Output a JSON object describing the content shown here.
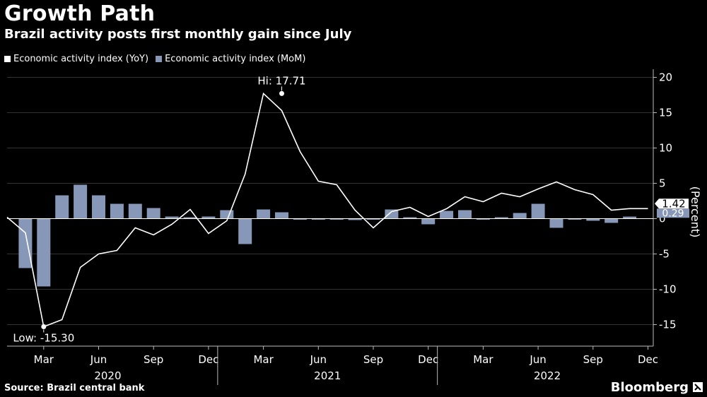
{
  "header": {
    "title": "Growth Path",
    "subtitle": "Brazil activity posts first monthly gain since July"
  },
  "legend": {
    "yoy_label": "Economic activity index (YoY)",
    "mom_label": "Economic activity index (MoM)"
  },
  "colors": {
    "yoy": "#ffffff",
    "mom": "#8797b8",
    "background": "#000000"
  },
  "footer": {
    "source": "Source: Brazil central bank",
    "brand": "Bloomberg",
    "brand_icon": "terminal-cursor-icon"
  },
  "chart_data": {
    "type": "bar+line",
    "ylabel": "(Percent)",
    "ylim": [
      -18,
      21
    ],
    "yticks": [
      20,
      15,
      10,
      5,
      0,
      -5,
      -10,
      -15
    ],
    "x": [
      "2020-01",
      "2020-02",
      "2020-03",
      "2020-04",
      "2020-05",
      "2020-06",
      "2020-07",
      "2020-08",
      "2020-09",
      "2020-10",
      "2020-11",
      "2020-12",
      "2021-01",
      "2021-02",
      "2021-03",
      "2021-04",
      "2021-05",
      "2021-06",
      "2021-07",
      "2021-08",
      "2021-09",
      "2021-10",
      "2021-11",
      "2021-12",
      "2022-01",
      "2022-02",
      "2022-03",
      "2022-04",
      "2022-05",
      "2022-06",
      "2022-07",
      "2022-08",
      "2022-09",
      "2022-10",
      "2022-11",
      "2022-12"
    ],
    "month_ticks": [
      "Mar",
      "Jun",
      "Sep",
      "Dec",
      "Mar",
      "Jun",
      "Sep",
      "Dec",
      "Mar",
      "Jun",
      "Sep",
      "Dec"
    ],
    "year_labels": [
      "2020",
      "2021",
      "2022"
    ],
    "series": [
      {
        "name": "Economic activity index (YoY)",
        "type": "line",
        "values": [
          0.2,
          -2.0,
          -15.3,
          -14.3,
          -6.9,
          -5.0,
          -4.5,
          -1.3,
          -2.3,
          -0.8,
          1.3,
          -2.1,
          -0.3,
          6.3,
          17.71,
          15.3,
          9.5,
          5.3,
          4.8,
          1.2,
          -1.3,
          1.0,
          1.6,
          0.3,
          1.4,
          3.1,
          2.4,
          3.6,
          3.1,
          4.2,
          5.2,
          4.1,
          3.4,
          1.2,
          1.42,
          1.42
        ]
      },
      {
        "name": "Economic activity index (MoM)",
        "type": "bar",
        "values": [
          null,
          -7.0,
          -9.6,
          3.3,
          4.8,
          3.3,
          2.1,
          2.1,
          1.5,
          0.3,
          0.2,
          0.3,
          1.2,
          -3.6,
          1.3,
          0.9,
          -0.1,
          -0.1,
          -0.1,
          -0.2,
          -0.1,
          1.3,
          0.2,
          -0.8,
          1.1,
          1.2,
          -0.1,
          0.2,
          0.8,
          2.1,
          -1.3,
          -0.1,
          -0.3,
          -0.6,
          0.29,
          null
        ]
      }
    ],
    "annotations": [
      {
        "label": "Hi: 17.71",
        "x": "2021-03",
        "y": 17.71
      },
      {
        "label": "Low: -15.30",
        "x": "2020-03",
        "y": -15.3
      }
    ],
    "last_value_tags": {
      "yoy": "1.42",
      "mom": "0.29"
    }
  }
}
